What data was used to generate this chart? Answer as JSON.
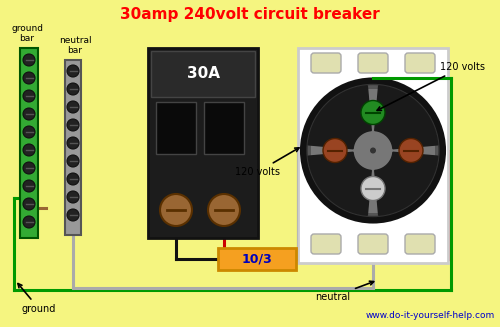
{
  "title": "30amp 240volt circuit breaker",
  "title_color": "#ff0000",
  "bg_color": "#f5f580",
  "website": "www.do-it-yourself-help.com",
  "website_color": "#0000cc",
  "label_ground_bar": "ground\nbar",
  "label_neutral_bar": "neutral\nbar",
  "label_30A": "30A",
  "label_120v_left": "120 volts",
  "label_120v_right": "120 volts",
  "label_neutral": "neutral",
  "label_ground": "ground",
  "label_cable": "10/3",
  "colors": {
    "green": "#009900",
    "red": "#cc0000",
    "black": "#111111",
    "white_wire": "#aaaaaa",
    "orange_cable": "#f5a020",
    "breaker_body": "#1a1a1a",
    "brown": "#996633",
    "ground_bar_green": "#33aa33",
    "neutral_bar_gray": "#999999",
    "outlet_white": "#ffffff",
    "screw_brown": "#994422",
    "screw_green": "#228B22",
    "screw_silver": "#bbbbbb",
    "outlet_dark": "#333333",
    "outlet_mid": "#666666"
  }
}
